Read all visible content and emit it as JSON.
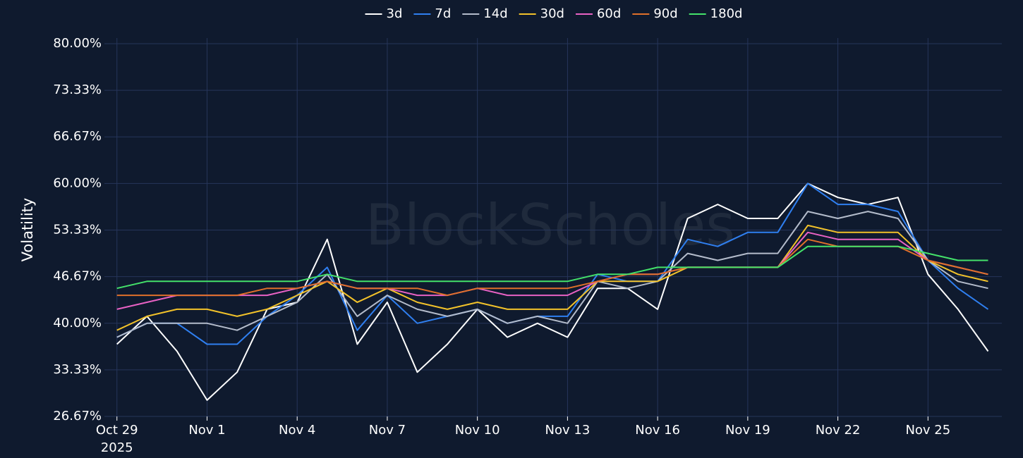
{
  "chart_data": {
    "type": "line",
    "watermark": "BlockScholes",
    "ylabel": "Volatility",
    "year_label": "2025",
    "x": [
      "2025-10-29",
      "2025-10-30",
      "2025-10-31",
      "2025-11-01",
      "2025-11-02",
      "2025-11-03",
      "2025-11-04",
      "2025-11-05",
      "2025-11-06",
      "2025-11-07",
      "2025-11-08",
      "2025-11-09",
      "2025-11-10",
      "2025-11-11",
      "2025-11-12",
      "2025-11-13",
      "2025-11-14",
      "2025-11-15",
      "2025-11-16",
      "2025-11-17",
      "2025-11-18",
      "2025-11-19",
      "2025-11-20",
      "2025-11-21",
      "2025-11-22",
      "2025-11-23",
      "2025-11-24",
      "2025-11-25",
      "2025-11-26",
      "2025-11-27"
    ],
    "series": [
      {
        "name": "3d",
        "color": "#ffffff",
        "values": [
          37,
          41,
          36,
          29,
          33,
          42,
          43,
          52,
          37,
          43,
          33,
          37,
          42,
          38,
          40,
          38,
          45,
          45,
          42,
          55,
          57,
          55,
          55,
          60,
          58,
          57,
          58,
          47,
          42,
          36
        ]
      },
      {
        "name": "7d",
        "color": "#2f7ff0",
        "values": [
          38,
          40,
          40,
          37,
          37,
          41,
          44,
          48,
          39,
          44,
          40,
          41,
          42,
          40,
          41,
          41,
          47,
          46,
          46,
          52,
          51,
          53,
          53,
          60,
          57,
          57,
          56,
          49,
          45,
          42
        ]
      },
      {
        "name": "14d",
        "color": "#b4bccb",
        "values": [
          38,
          40,
          40,
          40,
          39,
          41,
          43,
          47,
          41,
          44,
          42,
          41,
          42,
          40,
          41,
          40,
          46,
          45,
          46,
          50,
          49,
          50,
          50,
          56,
          55,
          56,
          55,
          49,
          46,
          45
        ]
      },
      {
        "name": "30d",
        "color": "#f2c22a",
        "values": [
          39,
          41,
          42,
          42,
          41,
          42,
          44,
          46,
          43,
          45,
          43,
          42,
          43,
          42,
          42,
          42,
          46,
          46,
          46,
          48,
          48,
          48,
          48,
          54,
          53,
          53,
          53,
          49,
          47,
          46
        ]
      },
      {
        "name": "60d",
        "color": "#e862c4",
        "values": [
          42,
          43,
          44,
          44,
          44,
          44,
          45,
          46,
          45,
          45,
          44,
          44,
          45,
          44,
          44,
          44,
          46,
          47,
          47,
          48,
          48,
          48,
          48,
          53,
          52,
          52,
          52,
          49,
          48,
          47
        ]
      },
      {
        "name": "90d",
        "color": "#e0702a",
        "values": [
          44,
          44,
          44,
          44,
          44,
          45,
          45,
          46,
          45,
          45,
          45,
          44,
          45,
          45,
          45,
          45,
          46,
          47,
          47,
          48,
          48,
          48,
          48,
          52,
          51,
          51,
          51,
          49,
          48,
          47
        ]
      },
      {
        "name": "180d",
        "color": "#44e26a",
        "values": [
          45,
          46,
          46,
          46,
          46,
          46,
          46,
          47,
          46,
          46,
          46,
          46,
          46,
          46,
          46,
          46,
          47,
          47,
          48,
          48,
          48,
          48,
          48,
          51,
          51,
          51,
          51,
          50,
          49,
          49
        ]
      }
    ],
    "xlim": [
      "2025-10-28T14:00Z",
      "2025-11-27T11:00Z"
    ],
    "xticks": [
      {
        "value": "2025-10-29",
        "label": "Oct 29"
      },
      {
        "value": "2025-11-01",
        "label": "Nov 1"
      },
      {
        "value": "2025-11-04",
        "label": "Nov 4"
      },
      {
        "value": "2025-11-07",
        "label": "Nov 7"
      },
      {
        "value": "2025-11-10",
        "label": "Nov 10"
      },
      {
        "value": "2025-11-13",
        "label": "Nov 13"
      },
      {
        "value": "2025-11-16",
        "label": "Nov 16"
      },
      {
        "value": "2025-11-19",
        "label": "Nov 19"
      },
      {
        "value": "2025-11-22",
        "label": "Nov 22"
      },
      {
        "value": "2025-11-25",
        "label": "Nov 25"
      }
    ],
    "ylim": [
      26.67,
      80
    ],
    "yticks": [
      {
        "value": 26.67,
        "label": "26.67%"
      },
      {
        "value": 33.33,
        "label": "33.33%"
      },
      {
        "value": 40,
        "label": "40.00%"
      },
      {
        "value": 46.67,
        "label": "46.67%"
      },
      {
        "value": 53.33,
        "label": "53.33%"
      },
      {
        "value": 60,
        "label": "60.00%"
      },
      {
        "value": 66.67,
        "label": "66.67%"
      },
      {
        "value": 73.33,
        "label": "73.33%"
      },
      {
        "value": 80,
        "label": "80.00%"
      }
    ],
    "grid": true
  }
}
